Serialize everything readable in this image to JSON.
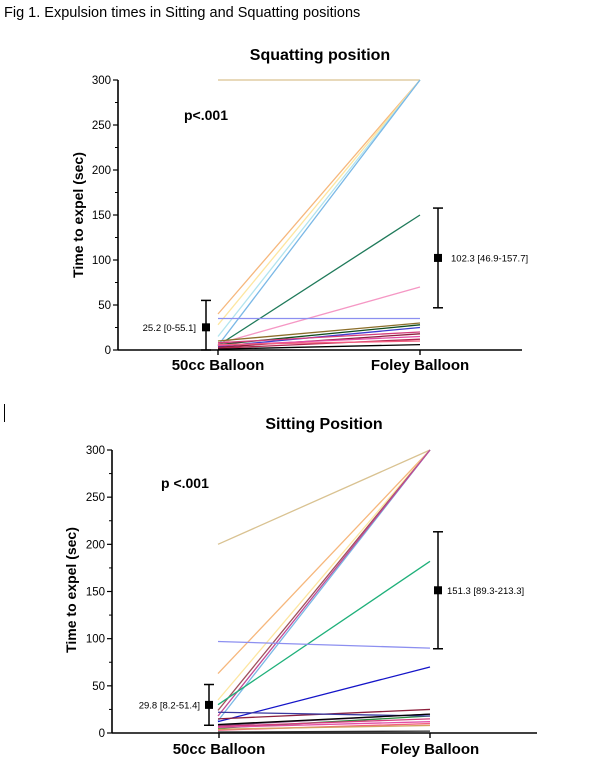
{
  "caption": "Fig 1. Expulsion times in Sitting and Squatting positions",
  "colors": {
    "axis": "#000000",
    "error_bar": "#000000"
  },
  "chart_data": [
    {
      "type": "line",
      "title": "Squatting position",
      "ylabel": "Time to expel (sec)",
      "xlabel": "",
      "categories": [
        "50cc Balloon",
        "Foley Balloon"
      ],
      "ylim": [
        0,
        300
      ],
      "yticks": [
        0,
        50,
        100,
        150,
        200,
        250,
        300
      ],
      "ytick_labels": [
        "0",
        "50",
        "100",
        "150",
        "200",
        "250",
        "300"
      ],
      "annotation": "p<.001",
      "summary": [
        {
          "category": "50cc Balloon",
          "median": 25.2,
          "low": 0,
          "high": 55.1,
          "label": "25.2 [0-55.1]"
        },
        {
          "category": "Foley Balloon",
          "median": 102.3,
          "low": 46.9,
          "high": 157.7,
          "label": "102.3 [46.9-157.7]"
        }
      ],
      "series": [
        {
          "values": [
            300,
            300
          ],
          "color": "#d9c291"
        },
        {
          "values": [
            40,
            300
          ],
          "color": "#f6b77c"
        },
        {
          "values": [
            28,
            300
          ],
          "color": "#fde6a0"
        },
        {
          "values": [
            15,
            300
          ],
          "color": "#b2e4ee"
        },
        {
          "values": [
            5,
            300
          ],
          "color": "#7ab8e6"
        },
        {
          "values": [
            5,
            150
          ],
          "color": "#1f7a5a"
        },
        {
          "values": [
            7,
            70
          ],
          "color": "#f597c4"
        },
        {
          "values": [
            35,
            35
          ],
          "color": "#8c8ff0"
        },
        {
          "values": [
            10,
            30
          ],
          "color": "#8c6e2a"
        },
        {
          "values": [
            6,
            28
          ],
          "color": "#0f4c1e"
        },
        {
          "values": [
            4,
            25
          ],
          "color": "#3c3cd0"
        },
        {
          "values": [
            8,
            20
          ],
          "color": "#d43d7d"
        },
        {
          "values": [
            3,
            18
          ],
          "color": "#8c1f3c"
        },
        {
          "values": [
            5,
            15
          ],
          "color": "#e24da6"
        },
        {
          "values": [
            2,
            12
          ],
          "color": "#b22650"
        },
        {
          "values": [
            6,
            10
          ],
          "color": "#f35f80"
        },
        {
          "values": [
            1,
            6
          ],
          "color": "#000000"
        }
      ]
    },
    {
      "type": "line",
      "title": "Sitting Position",
      "ylabel": "Time to expel (sec)",
      "xlabel": "",
      "categories": [
        "50cc Balloon",
        "Foley Balloon"
      ],
      "ylim": [
        0,
        300
      ],
      "yticks": [
        0,
        50,
        100,
        150,
        200,
        250,
        300
      ],
      "ytick_labels": [
        "0",
        "50",
        "100",
        "150",
        "200",
        "250",
        "300"
      ],
      "annotation": "p <.001",
      "summary": [
        {
          "category": "50cc Balloon",
          "median": 29.8,
          "low": 8.2,
          "high": 51.4,
          "label": "29.8 [8.2-51.4]"
        },
        {
          "category": "Foley Balloon",
          "median": 151.3,
          "low": 89.3,
          "high": 213.3,
          "label": "151.3 [89.3-213.3]"
        }
      ],
      "series": [
        {
          "values": [
            200,
            300
          ],
          "color": "#d9c291"
        },
        {
          "values": [
            63,
            300
          ],
          "color": "#f6b77c"
        },
        {
          "values": [
            35,
            300
          ],
          "color": "#fde6a0"
        },
        {
          "values": [
            24,
            300
          ],
          "color": "#a0505a"
        },
        {
          "values": [
            13,
            300
          ],
          "color": "#7ab8e6"
        },
        {
          "values": [
            18,
            300
          ],
          "color": "#c04a96"
        },
        {
          "values": [
            30,
            182
          ],
          "color": "#1fb07a"
        },
        {
          "values": [
            97,
            90
          ],
          "color": "#8c8ff0"
        },
        {
          "values": [
            12,
            70
          ],
          "color": "#1414c8"
        },
        {
          "values": [
            15,
            25
          ],
          "color": "#8c1f3c"
        },
        {
          "values": [
            8,
            20
          ],
          "color": "#6b3a6b"
        },
        {
          "values": [
            5,
            18
          ],
          "color": "#2a8c3c"
        },
        {
          "values": [
            7,
            15
          ],
          "color": "#d43d7d"
        },
        {
          "values": [
            22,
            18
          ],
          "color": "#3a3aa0"
        },
        {
          "values": [
            6,
            12
          ],
          "color": "#e24da6"
        },
        {
          "values": [
            3,
            10
          ],
          "color": "#f35f80"
        },
        {
          "values": [
            4,
            8
          ],
          "color": "#d4a060"
        },
        {
          "values": [
            1,
            2
          ],
          "color": "#2a2a2a"
        },
        {
          "values": [
            9,
            20
          ],
          "color": "#000000"
        }
      ]
    }
  ]
}
